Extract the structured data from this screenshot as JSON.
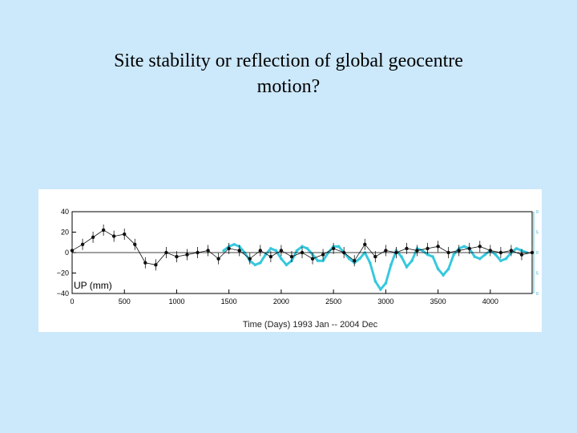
{
  "slide": {
    "title_line1": "Site stability or reflection of global geocentre",
    "title_line2": "motion?"
  },
  "colors": {
    "background": "#cce8fb",
    "station_series": "#111111",
    "geocentre_series": "#35c8de"
  },
  "chart_data": {
    "type": "scatter",
    "annotation": "UP (mm)",
    "xlabel": "Time (Days) 1993 Jan -- 2004 Dec",
    "xlim": [
      0,
      4400
    ],
    "ylim": [
      -40,
      40
    ],
    "x_ticks": [
      0,
      500,
      1000,
      1500,
      2000,
      2500,
      3000,
      3500,
      4000
    ],
    "y_ticks": [
      40,
      20,
      0,
      -20,
      -40
    ],
    "y_tick_labels": [
      "40",
      "20",
      "0",
      "−20",
      "−40"
    ],
    "right_axis_ticks": [
      "0",
      "5",
      "0",
      "5",
      "0"
    ],
    "grid": false,
    "series": [
      {
        "name": "",
        "style": "points with error bars",
        "x": [
          0,
          100,
          200,
          300,
          400,
          500,
          600,
          700,
          800,
          900,
          1000,
          1100,
          1200,
          1300,
          1400,
          1500,
          1600,
          1700,
          1800,
          1900,
          2000,
          2100,
          2200,
          2300,
          2400,
          2500,
          2600,
          2700,
          2800,
          2900,
          3000,
          3100,
          3200,
          3300,
          3400,
          3500,
          3600,
          3700,
          3800,
          3900,
          4000,
          4100,
          4200,
          4300,
          4400
        ],
        "y": [
          2,
          8,
          15,
          22,
          16,
          18,
          8,
          -10,
          -12,
          0,
          -4,
          -2,
          0,
          2,
          -6,
          4,
          2,
          -6,
          2,
          -4,
          2,
          -4,
          0,
          -6,
          -2,
          4,
          0,
          -8,
          8,
          -4,
          2,
          0,
          4,
          2,
          4,
          6,
          0,
          2,
          4,
          6,
          2,
          0,
          2,
          -2,
          0
        ]
      },
      {
        "name": "",
        "style": "smooth model",
        "x": [
          1450,
          1500,
          1550,
          1600,
          1650,
          1700,
          1750,
          1800,
          1850,
          1900,
          1950,
          2000,
          2050,
          2100,
          2150,
          2200,
          2250,
          2300,
          2350,
          2400,
          2450,
          2500,
          2550,
          2600,
          2650,
          2700,
          2750,
          2800,
          2850,
          2900,
          2950,
          3000,
          3050,
          3100,
          3150,
          3200,
          3250,
          3300,
          3350,
          3400,
          3450,
          3500,
          3550,
          3600,
          3650,
          3700,
          3750,
          3800,
          3850,
          3900,
          3950,
          4000,
          4050,
          4100,
          4150,
          4200,
          4250,
          4300,
          4350
        ],
        "y": [
          2,
          6,
          8,
          6,
          0,
          -8,
          -12,
          -10,
          -2,
          4,
          2,
          -6,
          -12,
          -8,
          2,
          6,
          4,
          -2,
          -8,
          -8,
          0,
          6,
          6,
          0,
          -6,
          -10,
          -6,
          0,
          -10,
          -28,
          -36,
          -30,
          -12,
          2,
          -4,
          -14,
          -8,
          4,
          2,
          -2,
          -4,
          -16,
          -22,
          -16,
          -2,
          4,
          6,
          4,
          -4,
          -6,
          -2,
          2,
          -2,
          -8,
          -6,
          0,
          4,
          2,
          0
        ]
      }
    ]
  }
}
